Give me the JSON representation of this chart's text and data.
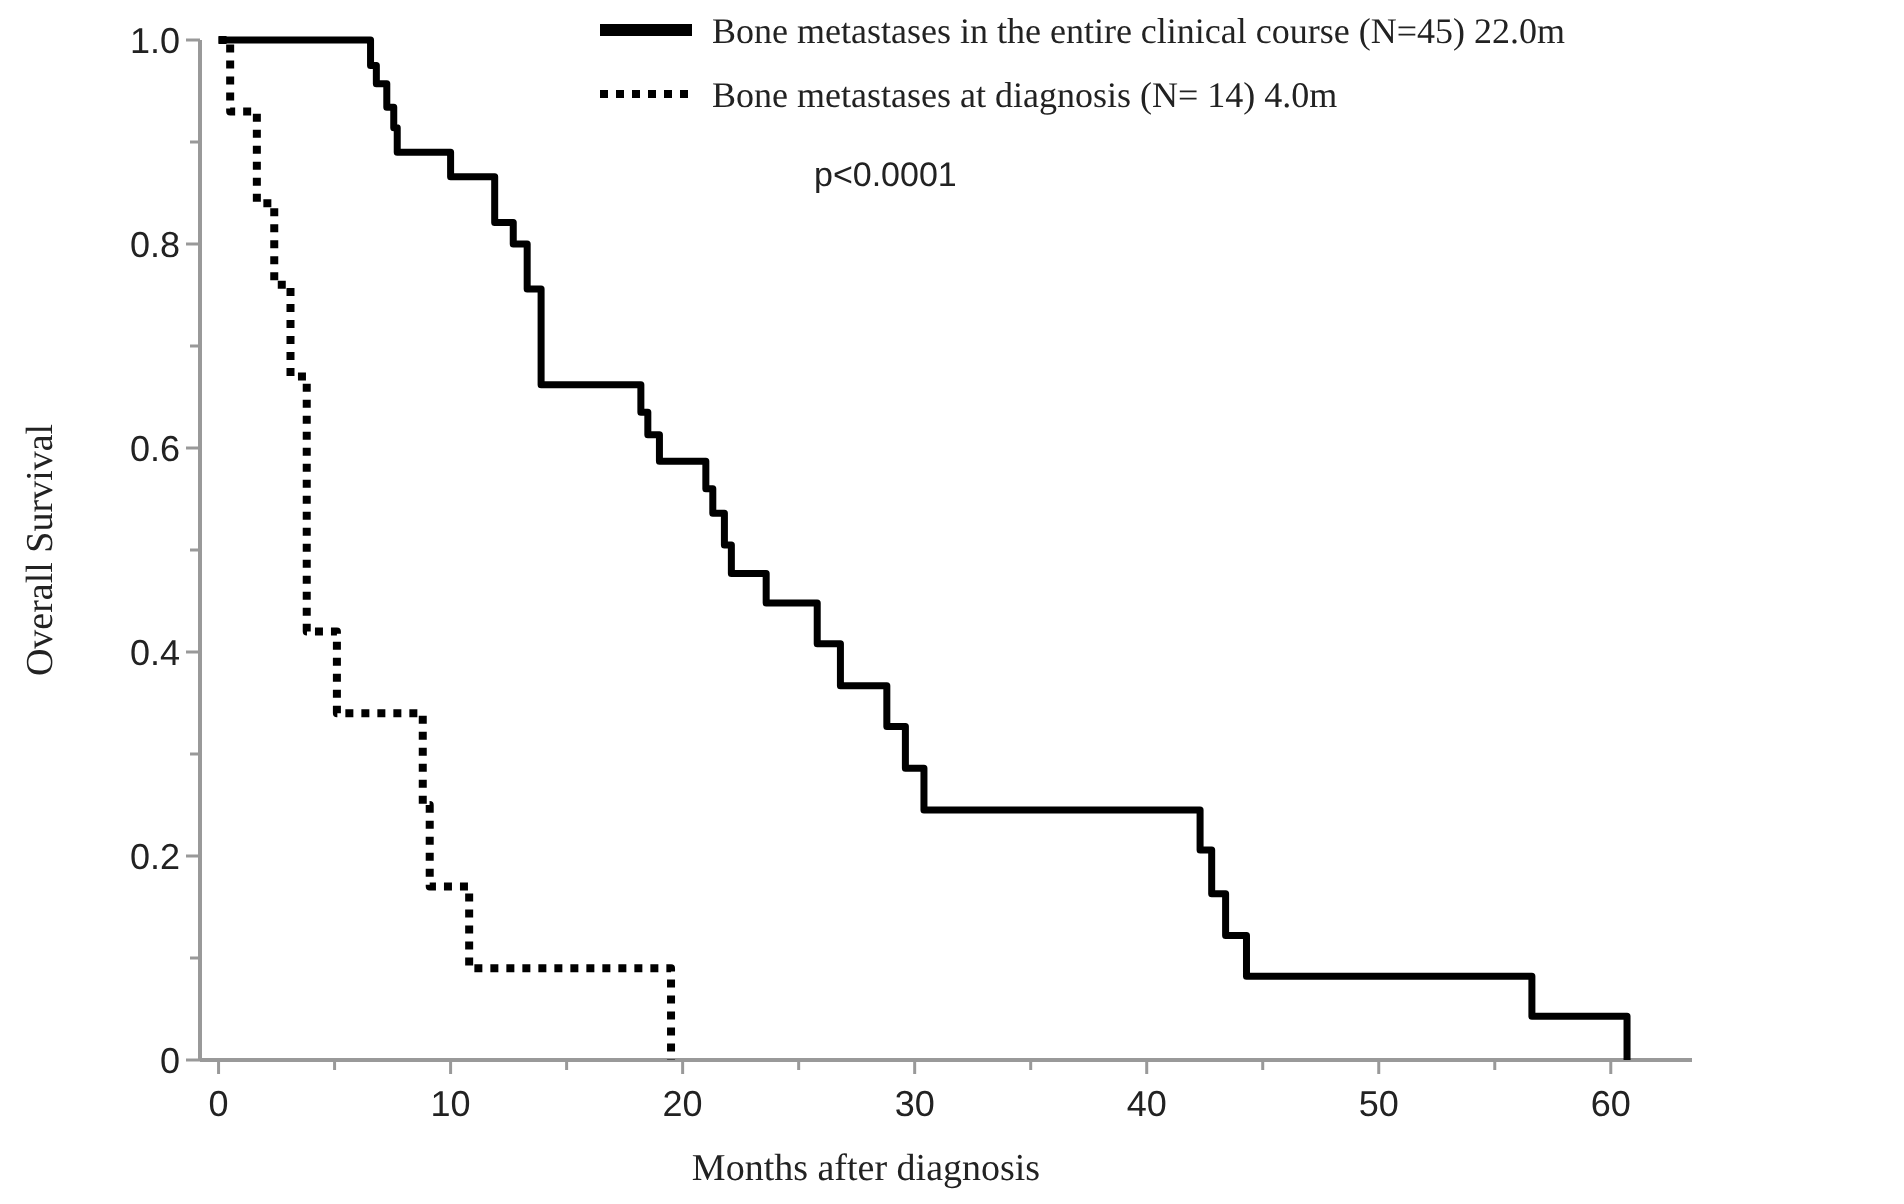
{
  "chart_data": {
    "type": "step",
    "xlabel": "Months after diagnosis",
    "ylabel": "Overall Survival",
    "xlim": [
      -0.8,
      63.5
    ],
    "ylim": [
      0,
      1
    ],
    "xticks": [
      0,
      {
        "value": 5,
        "label": null
      },
      10,
      {
        "value": 15,
        "label": null
      },
      20,
      {
        "value": 25,
        "label": null
      },
      30,
      {
        "value": 35,
        "label": null
      },
      40,
      {
        "value": 45,
        "label": null
      },
      50,
      {
        "value": 55,
        "label": null
      },
      60
    ],
    "yticks": [
      0,
      {
        "value": 0.1,
        "label": null
      },
      0.2,
      {
        "value": 0.3,
        "label": null
      },
      0.4,
      {
        "value": 0.5,
        "label": null
      },
      0.6,
      {
        "value": 0.7,
        "label": null
      },
      0.8,
      {
        "value": 0.9,
        "label": null
      },
      {
        "value": 1,
        "label": "1.0"
      }
    ],
    "grid": false,
    "legend": "top right",
    "marker": "none",
    "annotations": [
      "p<0.0001"
    ],
    "series": [
      {
        "name": "Bone metastases in the entire clinical course (N=45) 22.0m",
        "color": "#000000",
        "line_style": "solid",
        "x": [
          0,
          6.55,
          6.8,
          7.25,
          7.55,
          7.7,
          10.0,
          11.9,
          12.7,
          13.3,
          13.9,
          18.2,
          18.5,
          19.0,
          21.0,
          21.3,
          21.8,
          22.1,
          23.6,
          25.8,
          26.8,
          28.8,
          29.6,
          30.4,
          42.3,
          42.8,
          43.4,
          44.3,
          56.6,
          60.7
        ],
        "values": [
          1,
          0.975,
          0.957,
          0.934,
          0.914,
          0.89,
          0.866,
          0.821,
          0.8,
          0.756,
          0.662,
          0.635,
          0.613,
          0.587,
          0.56,
          0.536,
          0.505,
          0.477,
          0.448,
          0.408,
          0.367,
          0.327,
          0.286,
          0.245,
          0.206,
          0.163,
          0.122,
          0.082,
          0.043,
          0
        ]
      },
      {
        "name": "Bone metastases at diagnosis (N= 14) 4.0m",
        "color": "#000000",
        "line_style": "dotted",
        "x": [
          0,
          0.5,
          1.65,
          2.4,
          3.1,
          3.8,
          5.1,
          8.8,
          9.1,
          10.8,
          19.5
        ],
        "values": [
          1,
          0.93,
          0.84,
          0.76,
          0.67,
          0.42,
          0.34,
          0.25,
          0.17,
          0.09,
          0
        ]
      }
    ]
  }
}
